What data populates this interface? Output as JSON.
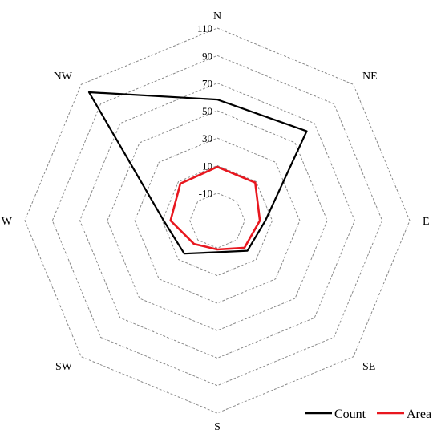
{
  "chart_data": {
    "type": "radar",
    "title": "",
    "directions": [
      "N",
      "NE",
      "E",
      "SE",
      "S",
      "SW",
      "W",
      "NW"
    ],
    "r_ticks": [
      -10,
      10,
      30,
      50,
      70,
      90,
      110
    ],
    "r_range": [
      -30,
      110
    ],
    "grid": true,
    "legend_position": "bottom-right",
    "series": [
      {
        "name": "Count",
        "color": "#000000",
        "values": [
          58,
          62,
          5,
          1,
          -7,
          4,
          9,
          102
        ]
      },
      {
        "name": "Area",
        "color": "#e8171f",
        "values": [
          9,
          9,
          1,
          -2,
          -9,
          -6,
          4,
          8
        ]
      }
    ]
  }
}
